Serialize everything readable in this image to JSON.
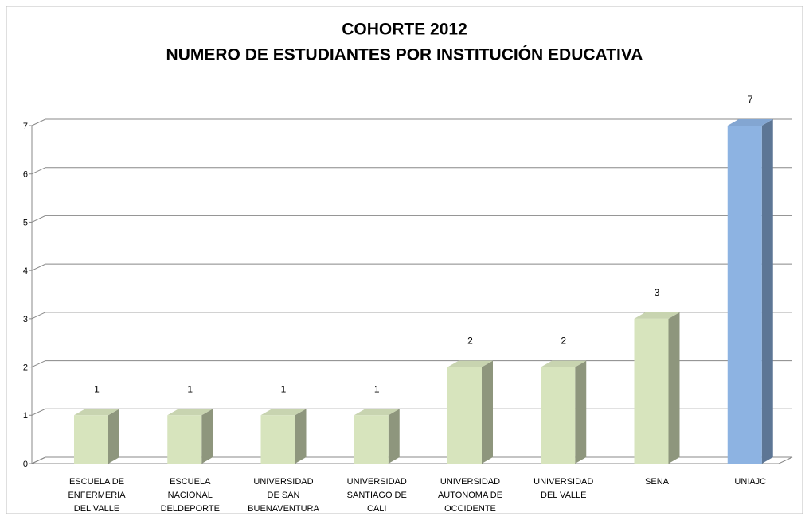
{
  "chart_data": {
    "type": "bar3d",
    "title": "COHORTE 2012",
    "subtitle": "NUMERO DE ESTUDIANTES POR INSTITUCIÓN EDUCATIVA",
    "categories": [
      "ESCUELA DE\nENFERMERIA\nDEL VALLE",
      "ESCUELA\nNACIONAL\nDELDEPORTE",
      "UNIVERSIDAD\nDE SAN\nBUENAVENTURA",
      "UNIVERSIDAD\nSANTIAGO DE\nCALI",
      "UNIVERSIDAD\nAUTONOMA DE\nOCCIDENTE",
      "UNIVERSIDAD\nDEL VALLE",
      "SENA",
      "UNIAJC"
    ],
    "values": [
      1,
      1,
      1,
      1,
      2,
      2,
      3,
      7
    ],
    "colors": [
      "#d7e4bd",
      "#d7e4bd",
      "#d7e4bd",
      "#d7e4bd",
      "#d7e4bd",
      "#d7e4bd",
      "#d7e4bd",
      "#8db3e2"
    ],
    "ylim": [
      0,
      7
    ],
    "yticks": [
      0,
      1,
      2,
      3,
      4,
      5,
      6,
      7
    ],
    "grid": true
  }
}
